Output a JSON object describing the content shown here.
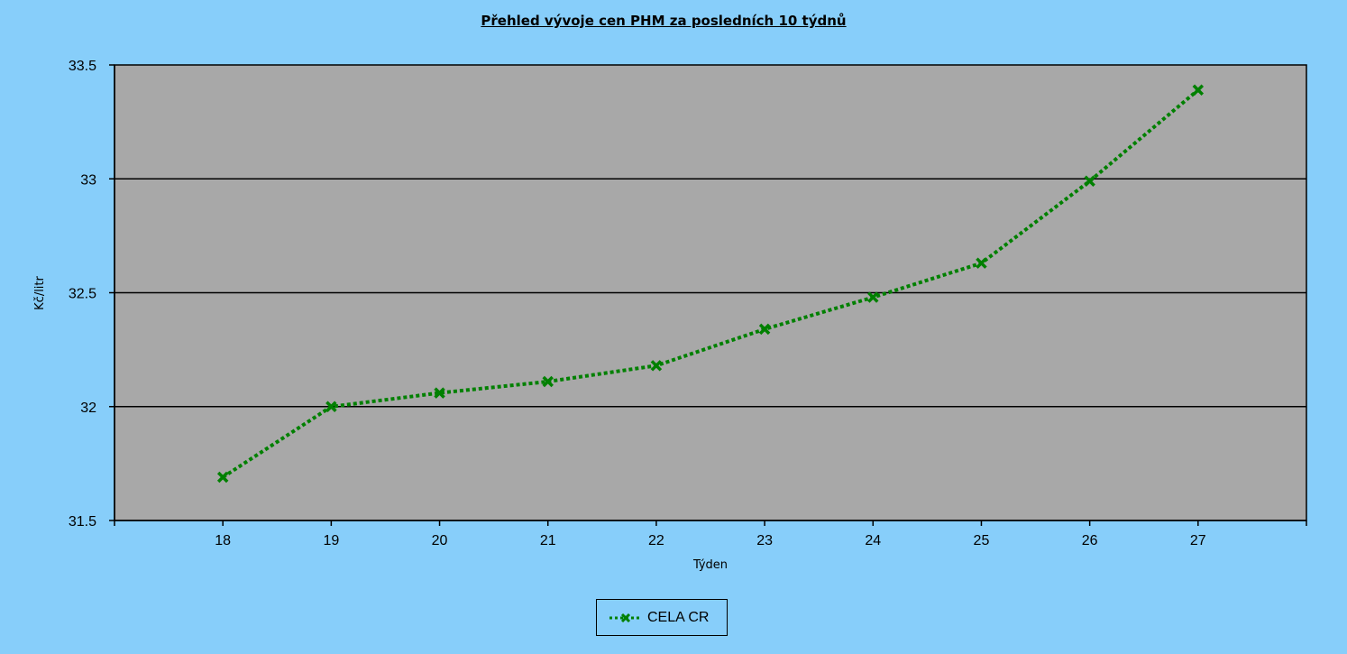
{
  "chart_data": {
    "type": "line",
    "title": "Přehled vývoje cen PHM za posledních 10 týdnů",
    "xlabel": "Týden",
    "ylabel": "Kč/litr",
    "x": [
      18,
      19,
      20,
      21,
      22,
      23,
      24,
      25,
      26,
      27
    ],
    "xlim": [
      17,
      28
    ],
    "ylim": [
      31.5,
      33.5
    ],
    "yticks": [
      "31.5",
      "32",
      "32.5",
      "33",
      "33.5"
    ],
    "xticks": [
      "18",
      "19",
      "20",
      "21",
      "22",
      "23",
      "24",
      "25",
      "26",
      "27"
    ],
    "grid": true,
    "legend_position": "bottom-center",
    "series": [
      {
        "name": "CELA CR",
        "values": [
          31.69,
          32.0,
          32.06,
          32.11,
          32.18,
          32.34,
          32.48,
          32.63,
          32.99,
          33.39
        ]
      }
    ]
  },
  "colors": {
    "background": "#87cefa",
    "plot_area": "#a8a8a8",
    "series_line": "#008000",
    "gridline": "#000000"
  }
}
